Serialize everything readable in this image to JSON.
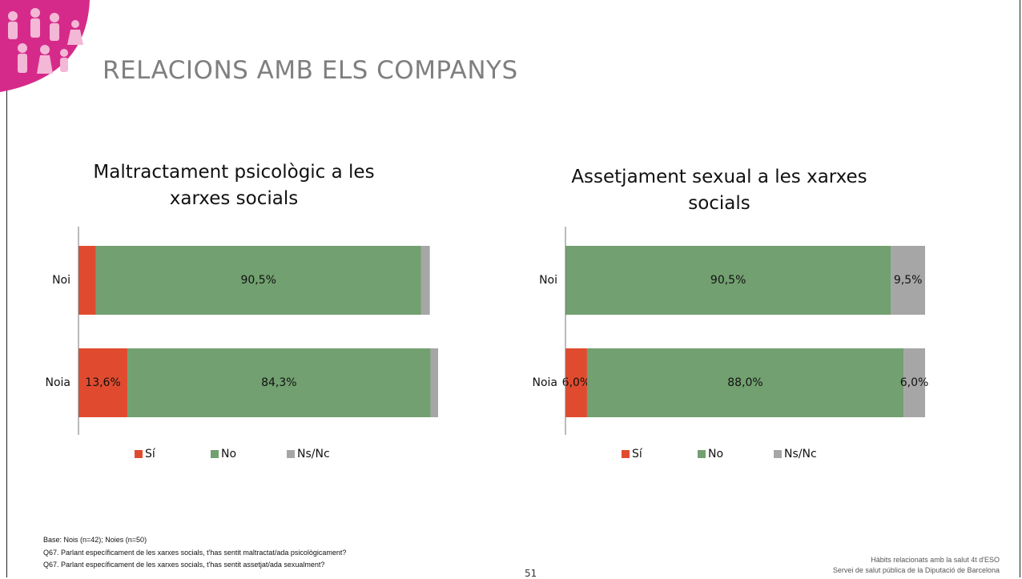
{
  "header": {
    "title": "RELACIONS AMB ELS COMPANYS"
  },
  "chart_data": [
    {
      "type": "stacked_barh",
      "title": "Maltractament psicològic a les xarxes socials",
      "categories": [
        "Noi",
        "Noia"
      ],
      "series": [
        {
          "name": "Sí",
          "color": "#e04b2f",
          "values": [
            4.8,
            13.6
          ],
          "value_labels": [
            null,
            "13,6%"
          ]
        },
        {
          "name": "No",
          "color": "#72a070",
          "values": [
            90.5,
            84.3
          ],
          "value_labels": [
            "90,5%",
            "84,3%"
          ]
        },
        {
          "name": "Ns/Nc",
          "color": "#a6a6a6",
          "values": [
            2.4,
            2.1
          ],
          "value_labels": [
            null,
            null
          ]
        }
      ],
      "xlim": [
        0,
        100
      ],
      "legend": "bottom"
    },
    {
      "type": "stacked_barh",
      "title": "Assetjament sexual a les xarxes socials",
      "categories": [
        "Noi",
        "Noia"
      ],
      "series": [
        {
          "name": "Sí",
          "color": "#e04b2f",
          "values": [
            0,
            6.0
          ],
          "value_labels": [
            null,
            "6,0%"
          ]
        },
        {
          "name": "No",
          "color": "#72a070",
          "values": [
            90.5,
            88.0
          ],
          "value_labels": [
            "90,5%",
            "88,0%"
          ]
        },
        {
          "name": "Ns/Nc",
          "color": "#a6a6a6",
          "values": [
            9.5,
            6.0
          ],
          "value_labels": [
            "9,5%",
            "6,0%"
          ]
        }
      ],
      "xlim": [
        0,
        100
      ],
      "legend": "bottom"
    }
  ],
  "notes": [
    "Base: Nois (n=42); Noies (n=50)",
    "Q67. Parlant específicament de les xarxes socials, t'has sentit maltractat/ada psicològicament?",
    "Q67. Parlant específicament de les xarxes socials, t'has sentit assetjat/ada sexualment?"
  ],
  "page_number": "51",
  "footer": [
    "Hàbits relacionats amb la salut 4t d'ESO",
    "Servei de salut pública de la Diputació de Barcelona"
  ]
}
